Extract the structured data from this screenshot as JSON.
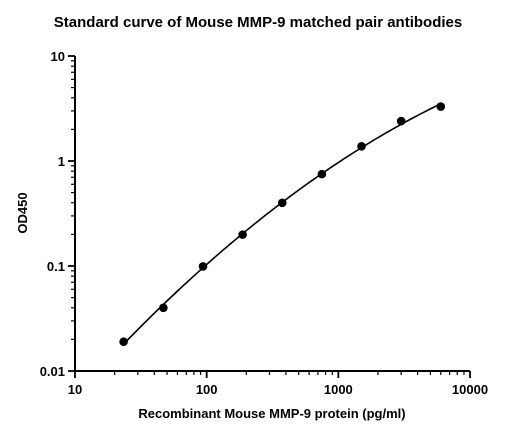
{
  "chart_data": {
    "type": "scatter",
    "title": "Standard curve of Mouse MMP-9 matched pair antibodies",
    "xlabel": "Recombinant Mouse MMP-9 protein (pg/ml)",
    "ylabel": "OD450",
    "xscale": "log",
    "yscale": "log",
    "xlim": [
      10,
      10000
    ],
    "ylim": [
      0.01,
      10
    ],
    "x_ticks": [
      "10",
      "100",
      "1000",
      "10000"
    ],
    "y_ticks": [
      "0.01",
      "0.1",
      "1",
      "10"
    ],
    "grid": false,
    "legend": "none",
    "fitted_curve": true,
    "series": [
      {
        "x": [
          23.4,
          46.9,
          93.8,
          187.5,
          375,
          750,
          1500,
          3000,
          6000
        ],
        "y": [
          0.019,
          0.04,
          0.099,
          0.199,
          0.4,
          0.75,
          1.38,
          2.4,
          3.3
        ]
      }
    ],
    "point_color": "#000000",
    "curve_color": "#000000"
  }
}
